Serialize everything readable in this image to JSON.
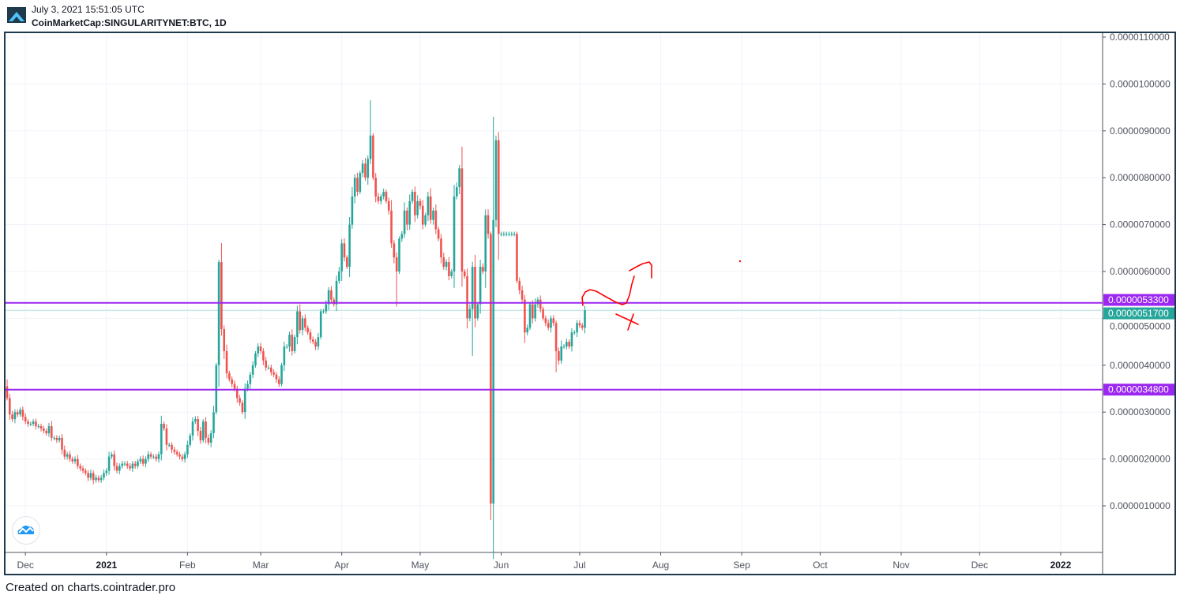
{
  "header": {
    "timestamp": "July 3, 2021 15:51:05 UTC",
    "symbol": "CoinMarketCap:SINGULARITYNET:BTC, 1D"
  },
  "footer": {
    "text": "Created on charts.cointrader.pro"
  },
  "colors": {
    "up": "#26a69a",
    "down": "#ef5350",
    "level": "#9c27f0",
    "last_price": "#26a69a",
    "drawing": "#ff0000",
    "frame": "#1f3a4d"
  },
  "chart_data": {
    "type": "candlestick",
    "title": "CoinMarketCap:SINGULARITYNET:BTC, 1D",
    "interval": "1D",
    "start_date": "2020-11-24",
    "end_date": "2021-07-03",
    "value_unit": "1e-6 BTC",
    "ylim": [
      0,
      11.2
    ],
    "y_ticks": [
      "0.0000010000",
      "0.0000020000",
      "0.0000030000",
      "0.0000040000",
      "0.0000050000",
      "0.0000060000",
      "0.0000070000",
      "0.0000080000",
      "0.0000090000",
      "0.0000100000",
      "0.0000110000"
    ],
    "y_tick_values": [
      1,
      2,
      3,
      4,
      5,
      6,
      7,
      8,
      9,
      10,
      11
    ],
    "x_ticks": [
      {
        "label": "Dec",
        "day": 7,
        "bold": false
      },
      {
        "label": "2021",
        "day": 38,
        "bold": true
      },
      {
        "label": "Feb",
        "day": 69,
        "bold": false
      },
      {
        "label": "Mar",
        "day": 97,
        "bold": false
      },
      {
        "label": "Apr",
        "day": 128,
        "bold": false
      },
      {
        "label": "May",
        "day": 158,
        "bold": false
      },
      {
        "label": "Jun",
        "day": 189,
        "bold": false
      },
      {
        "label": "Jul",
        "day": 219,
        "bold": false
      },
      {
        "label": "Aug",
        "day": 250,
        "bold": false
      },
      {
        "label": "Sep",
        "day": 281,
        "bold": false
      },
      {
        "label": "Oct",
        "day": 311,
        "bold": false
      },
      {
        "label": "Nov",
        "day": 342,
        "bold": false
      },
      {
        "label": "Dec",
        "day": 372,
        "bold": false
      },
      {
        "label": "2022",
        "day": 403,
        "bold": true
      }
    ],
    "total_days_axis": 420,
    "first_open": 3.55,
    "closes": [
      3.3,
      2.95,
      2.85,
      3.0,
      2.95,
      3.05,
      2.9,
      2.8,
      2.75,
      2.75,
      2.8,
      2.7,
      2.7,
      2.65,
      2.6,
      2.55,
      2.7,
      2.45,
      2.45,
      2.4,
      2.45,
      2.2,
      2.05,
      2.1,
      2.0,
      1.95,
      2.0,
      1.85,
      1.8,
      1.75,
      1.7,
      1.6,
      1.7,
      1.55,
      1.6,
      1.55,
      1.6,
      1.7,
      1.75,
      2.05,
      2.1,
      1.85,
      1.75,
      1.85,
      1.9,
      1.9,
      1.85,
      1.8,
      1.9,
      1.85,
      1.95,
      2.0,
      1.9,
      2.0,
      2.1,
      2.05,
      2.05,
      2.0,
      2.1,
      2.75,
      2.65,
      2.3,
      2.3,
      2.2,
      2.15,
      2.1,
      2.05,
      2.0,
      2.1,
      2.3,
      2.5,
      2.8,
      2.85,
      2.6,
      2.4,
      2.8,
      2.45,
      2.35,
      2.55,
      3.0,
      4.0,
      6.2,
      4.77,
      4.3,
      3.83,
      3.7,
      3.6,
      3.5,
      3.3,
      3.2,
      3.0,
      3.5,
      3.6,
      3.8,
      4.0,
      4.25,
      4.4,
      4.3,
      4.1,
      3.95,
      3.95,
      3.85,
      3.8,
      3.7,
      3.6,
      4.0,
      4.4,
      4.4,
      4.65,
      4.3,
      4.6,
      5.15,
      4.75,
      5.0,
      4.8,
      4.7,
      4.55,
      4.5,
      4.4,
      4.6,
      5.15,
      5.15,
      5.3,
      5.6,
      5.4,
      5.3,
      5.8,
      6.0,
      6.6,
      6.3,
      6.1,
      7.0,
      7.6,
      8.0,
      7.7,
      8.1,
      8.3,
      8.0,
      8.4,
      8.9,
      8.0,
      7.6,
      7.5,
      7.6,
      7.7,
      7.5,
      7.3,
      6.6,
      6.3,
      6.0,
      6.7,
      6.8,
      7.3,
      7.0,
      7.5,
      7.7,
      7.2,
      7.5,
      7.4,
      7.0,
      7.2,
      7.6,
      7.1,
      7.3,
      6.9,
      6.7,
      6.3,
      6.1,
      6.2,
      5.9,
      6.0,
      7.6,
      7.8,
      8.2,
      6.0,
      5.9,
      5.0,
      5.2,
      6.1,
      5.0,
      5.3,
      6.1,
      6.0,
      7.2,
      6.8,
      1.05,
      7.1,
      8.8,
      6.8,
      6.8,
      6.8,
      6.8,
      6.8,
      6.8,
      6.8,
      5.8,
      5.6,
      5.4,
      4.7,
      4.8,
      5.3,
      5.0,
      5.3,
      5.4,
      5.2,
      5.0,
      4.9,
      4.8,
      5.0,
      4.9,
      4.3,
      4.1,
      4.4,
      4.4,
      4.5,
      4.4,
      4.7,
      4.7,
      4.9,
      4.85,
      4.8,
      5.17
    ],
    "extreme_wicks": [
      {
        "day": 0,
        "high": 3.7
      },
      {
        "day": 81,
        "high": 6.25
      },
      {
        "day": 139,
        "high": 9.65
      },
      {
        "day": 149,
        "low": 5.25
      },
      {
        "day": 178,
        "low": 4.2
      },
      {
        "day": 185,
        "low": 0.7
      },
      {
        "day": 186,
        "high": 9.3
      },
      {
        "day": 187,
        "high": 8.9
      },
      {
        "day": 210,
        "low": 3.85
      }
    ],
    "levels": [
      {
        "name": "resistance",
        "value": 5.33,
        "label": "0.0000053300"
      },
      {
        "name": "support",
        "value": 3.48,
        "label": "0.0000034800"
      }
    ],
    "last_price": {
      "value": 5.17,
      "label": "0.0000051700"
    },
    "annotations": "hand-drawn red projection curve and cross after last candle"
  }
}
